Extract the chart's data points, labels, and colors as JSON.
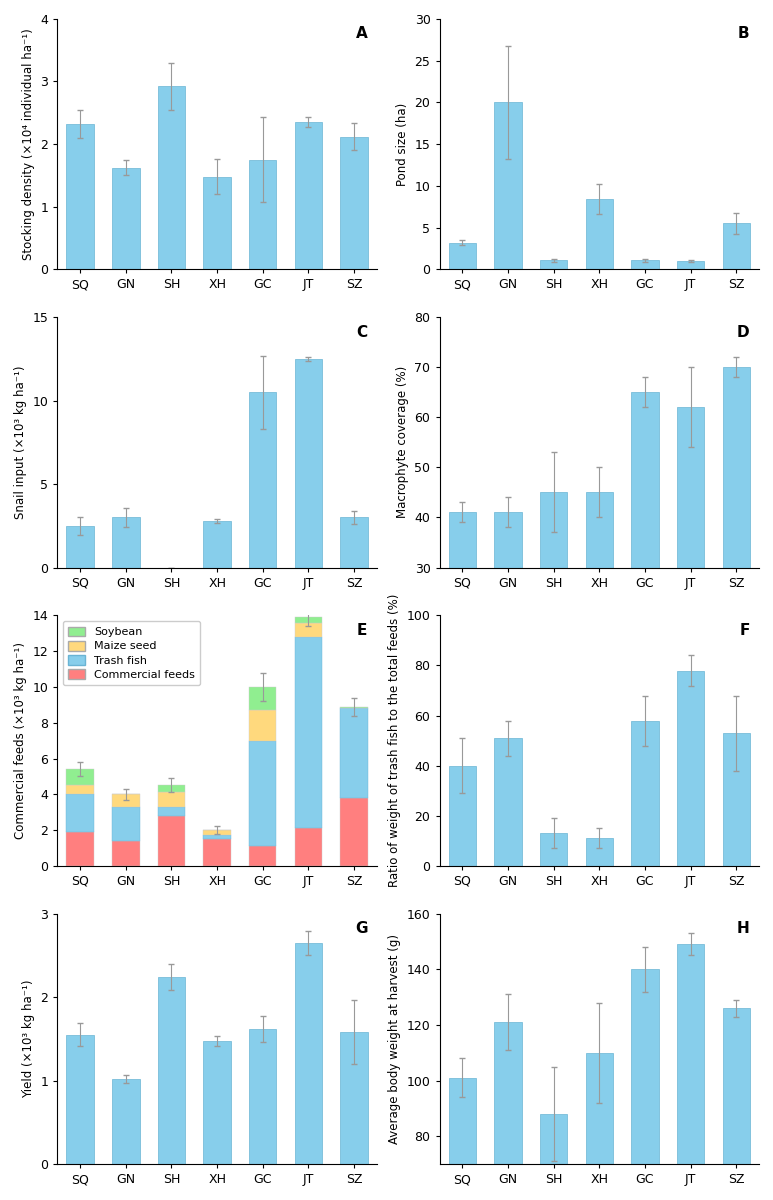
{
  "categories": [
    "SQ",
    "GN",
    "SH",
    "XH",
    "GC",
    "JT",
    "SZ"
  ],
  "panel_A": {
    "ylabel": "Stocking density (×10⁴ individual ha⁻¹)",
    "ylim": [
      0,
      4
    ],
    "yticks": [
      0,
      1,
      2,
      3,
      4
    ],
    "values": [
      2.32,
      1.62,
      2.92,
      1.48,
      1.75,
      2.35,
      2.12
    ],
    "errors": [
      0.22,
      0.12,
      0.38,
      0.28,
      0.68,
      0.08,
      0.22
    ]
  },
  "panel_B": {
    "ylabel": "Pond size (ha)",
    "ylim": [
      0,
      30
    ],
    "yticks": [
      0,
      5,
      10,
      15,
      20,
      25,
      30
    ],
    "values": [
      3.2,
      20.0,
      1.1,
      8.4,
      1.1,
      1.0,
      5.5
    ],
    "errors": [
      0.25,
      6.8,
      0.18,
      1.8,
      0.18,
      0.12,
      1.3
    ]
  },
  "panel_C": {
    "ylabel": "Snail input (×10³ kg ha⁻¹)",
    "ylim": [
      0,
      15
    ],
    "yticks": [
      0,
      5,
      10,
      15
    ],
    "values": [
      2.5,
      3.0,
      0,
      2.8,
      10.5,
      12.5,
      3.0
    ],
    "errors": [
      0.55,
      0.55,
      0,
      0.12,
      2.2,
      0.12,
      0.38
    ]
  },
  "panel_D": {
    "ylabel": "Macrophyte coverage (%)",
    "ylim": [
      30,
      80
    ],
    "yticks": [
      30,
      40,
      50,
      60,
      70,
      80
    ],
    "values": [
      41,
      41,
      45,
      45,
      65,
      62,
      70
    ],
    "errors": [
      2,
      3,
      8,
      5,
      3,
      8,
      2
    ]
  },
  "panel_E": {
    "ylabel": "Commercial feeds (×10³ kg ha⁻¹)",
    "ylim": [
      0,
      14
    ],
    "yticks": [
      0,
      2,
      4,
      6,
      8,
      10,
      12,
      14
    ],
    "commercial": [
      1.9,
      1.4,
      2.8,
      1.5,
      1.1,
      2.1,
      3.8
    ],
    "trash_fish": [
      2.1,
      1.9,
      0.5,
      0.2,
      5.9,
      10.7,
      5.0
    ],
    "maize_seed": [
      0.5,
      0.7,
      0.8,
      0.3,
      1.7,
      0.8,
      0.0
    ],
    "soybean": [
      0.9,
      0.0,
      0.4,
      0.0,
      1.3,
      0.3,
      0.1
    ],
    "errors": [
      0.4,
      0.3,
      0.4,
      0.2,
      0.8,
      0.5,
      0.5
    ],
    "legend": [
      "Soybean",
      "Maize seed",
      "Trash fish",
      "Commercial feeds"
    ],
    "colors": [
      "#90EE90",
      "#FFD97D",
      "#87CEEB",
      "#FF7F7F"
    ]
  },
  "panel_F": {
    "ylabel": "Ratio of weight of trash fish to the total feeds (%)",
    "ylim": [
      0,
      100
    ],
    "yticks": [
      0,
      20,
      40,
      60,
      80,
      100
    ],
    "values": [
      40,
      51,
      13,
      11,
      58,
      78,
      53
    ],
    "errors": [
      11,
      7,
      6,
      4,
      10,
      6,
      15
    ]
  },
  "panel_G": {
    "ylabel": "Yield (×10³ kg ha⁻¹)",
    "ylim": [
      0,
      3
    ],
    "yticks": [
      0,
      1,
      2,
      3
    ],
    "values": [
      1.55,
      1.02,
      2.24,
      1.48,
      1.62,
      2.65,
      1.58
    ],
    "errors": [
      0.14,
      0.05,
      0.16,
      0.06,
      0.16,
      0.14,
      0.38
    ]
  },
  "panel_H": {
    "ylabel": "Average body weight at harvest (g)",
    "ylim": [
      70,
      160
    ],
    "yticks": [
      80,
      100,
      120,
      140,
      160
    ],
    "values": [
      101,
      121,
      88,
      110,
      140,
      149,
      126
    ],
    "errors": [
      7,
      10,
      17,
      18,
      8,
      4,
      3
    ]
  },
  "bar_color": "#87CEEB",
  "bar_edgecolor": "#6ab4d4",
  "error_color": "#999999",
  "background_color": "#ffffff"
}
